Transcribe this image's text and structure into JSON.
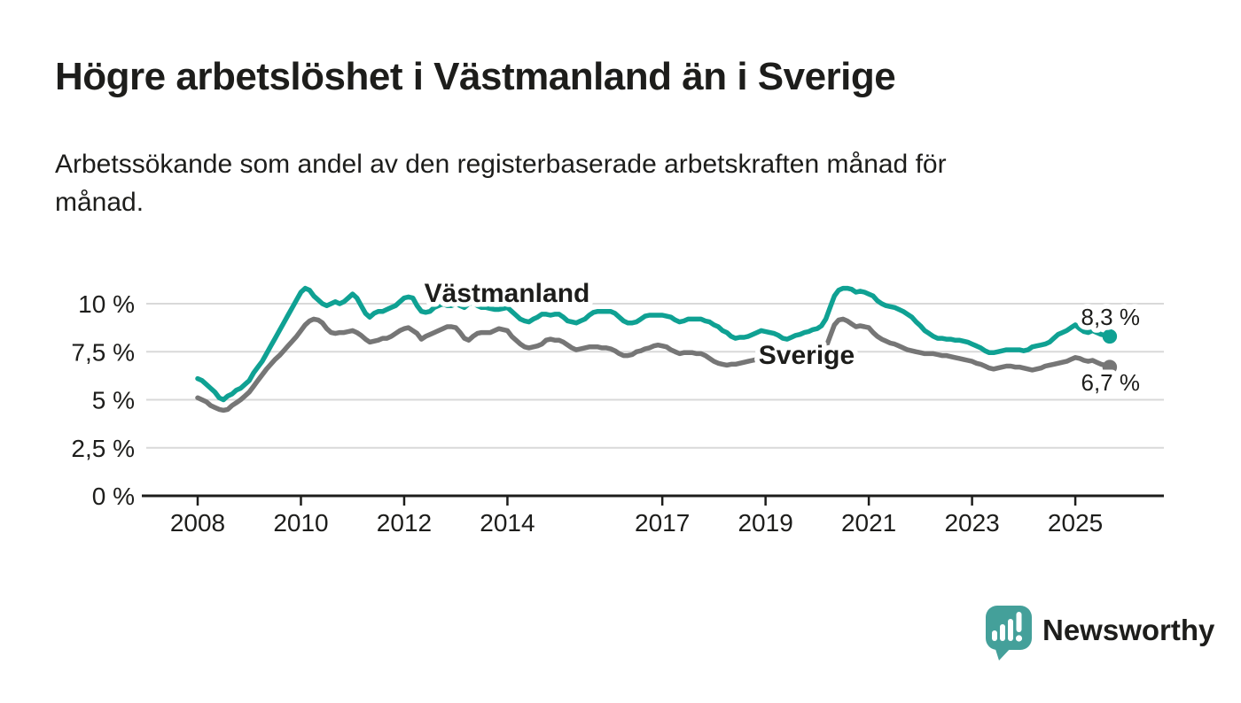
{
  "header": {
    "title": "Högre arbetslöshet i Västmanland än i Sverige",
    "subtitle": "Arbetssökande som andel av den registerbaserade arbetskraften månad för månad.",
    "subtitle_lines": [
      "Arbetssökande som andel av den registerbaserade arbetskraften månad för",
      "månad."
    ]
  },
  "chart_data": {
    "type": "line",
    "unit": "percent",
    "x_start": "2008-01",
    "x_end": "2025-09",
    "points_per_year": 12,
    "grid": true,
    "ylim": [
      0,
      11.3
    ],
    "y_axis": {
      "ticks": [
        {
          "value": 0,
          "label": "0 %"
        },
        {
          "value": 2.5,
          "label": "2,5 %"
        },
        {
          "value": 5,
          "label": "5 %"
        },
        {
          "value": 7.5,
          "label": "7,5 %"
        },
        {
          "value": 10,
          "label": "10 %"
        }
      ]
    },
    "x_axis": {
      "ticks": [
        {
          "year": 2008,
          "label": "2008"
        },
        {
          "year": 2010,
          "label": "2010"
        },
        {
          "year": 2012,
          "label": "2012"
        },
        {
          "year": 2014,
          "label": "2014"
        },
        {
          "year": 2017,
          "label": "2017"
        },
        {
          "year": 2019,
          "label": "2019"
        },
        {
          "year": 2021,
          "label": "2021"
        },
        {
          "year": 2023,
          "label": "2023"
        },
        {
          "year": 2025,
          "label": "2025"
        }
      ]
    },
    "series": [
      {
        "name": "Västmanland",
        "color": "#0fa193",
        "end_label": "8,3 %",
        "end_value": 8.3,
        "values": [
          6.1,
          6.0,
          5.8,
          5.6,
          5.4,
          5.1,
          5.0,
          5.2,
          5.3,
          5.5,
          5.6,
          5.8,
          6.0,
          6.4,
          6.7,
          7.0,
          7.4,
          7.8,
          8.2,
          8.6,
          9.0,
          9.4,
          9.8,
          10.2,
          10.6,
          10.8,
          10.7,
          10.4,
          10.2,
          10.0,
          9.9,
          10.0,
          10.1,
          10.0,
          10.1,
          10.3,
          10.5,
          10.3,
          9.9,
          9.5,
          9.3,
          9.5,
          9.6,
          9.6,
          9.7,
          9.8,
          9.9,
          10.1,
          10.3,
          10.35,
          10.3,
          9.9,
          9.6,
          9.55,
          9.6,
          9.8,
          9.9,
          10.0,
          9.9,
          9.9,
          10.0,
          9.9,
          9.8,
          10.0,
          10.05,
          9.9,
          9.8,
          9.8,
          9.75,
          9.7,
          9.7,
          9.75,
          9.8,
          9.6,
          9.4,
          9.2,
          9.1,
          9.05,
          9.2,
          9.3,
          9.45,
          9.45,
          9.4,
          9.45,
          9.45,
          9.3,
          9.1,
          9.05,
          9.0,
          9.1,
          9.2,
          9.4,
          9.55,
          9.6,
          9.6,
          9.6,
          9.6,
          9.5,
          9.3,
          9.1,
          9.0,
          9.0,
          9.05,
          9.2,
          9.35,
          9.4,
          9.4,
          9.4,
          9.4,
          9.35,
          9.3,
          9.15,
          9.05,
          9.1,
          9.2,
          9.2,
          9.2,
          9.2,
          9.1,
          9.05,
          8.9,
          8.8,
          8.6,
          8.5,
          8.3,
          8.2,
          8.25,
          8.25,
          8.3,
          8.4,
          8.5,
          8.6,
          8.55,
          8.5,
          8.45,
          8.35,
          8.2,
          8.15,
          8.25,
          8.35,
          8.4,
          8.5,
          8.55,
          8.65,
          8.7,
          8.85,
          9.2,
          9.8,
          10.4,
          10.7,
          10.8,
          10.8,
          10.75,
          10.6,
          10.65,
          10.6,
          10.5,
          10.4,
          10.15,
          10.0,
          9.9,
          9.85,
          9.8,
          9.7,
          9.6,
          9.45,
          9.3,
          9.05,
          8.85,
          8.6,
          8.45,
          8.3,
          8.2,
          8.2,
          8.15,
          8.15,
          8.1,
          8.1,
          8.05,
          8.0,
          7.9,
          7.8,
          7.7,
          7.55,
          7.45,
          7.45,
          7.5,
          7.55,
          7.6,
          7.6,
          7.6,
          7.6,
          7.55,
          7.6,
          7.75,
          7.8,
          7.85,
          7.9,
          8.0,
          8.2,
          8.4,
          8.5,
          8.6,
          8.75,
          8.9,
          8.7,
          8.55,
          8.5,
          8.6,
          8.5,
          8.4,
          8.35,
          8.3
        ]
      },
      {
        "name": "Sverige",
        "color": "#767676",
        "end_label": "6,7 %",
        "end_value": 6.7,
        "values": [
          5.1,
          5.0,
          4.9,
          4.7,
          4.6,
          4.5,
          4.45,
          4.5,
          4.7,
          4.85,
          5.0,
          5.2,
          5.4,
          5.7,
          6.0,
          6.3,
          6.6,
          6.85,
          7.1,
          7.3,
          7.55,
          7.8,
          8.05,
          8.3,
          8.6,
          8.9,
          9.1,
          9.2,
          9.15,
          9.0,
          8.7,
          8.5,
          8.45,
          8.5,
          8.5,
          8.55,
          8.6,
          8.5,
          8.35,
          8.15,
          8.0,
          8.05,
          8.1,
          8.2,
          8.2,
          8.3,
          8.45,
          8.6,
          8.7,
          8.75,
          8.6,
          8.45,
          8.15,
          8.3,
          8.4,
          8.5,
          8.6,
          8.7,
          8.8,
          8.8,
          8.75,
          8.5,
          8.2,
          8.1,
          8.3,
          8.45,
          8.5,
          8.5,
          8.5,
          8.6,
          8.7,
          8.65,
          8.6,
          8.3,
          8.1,
          7.9,
          7.75,
          7.7,
          7.75,
          7.8,
          7.9,
          8.1,
          8.15,
          8.1,
          8.1,
          8.0,
          7.85,
          7.7,
          7.6,
          7.65,
          7.7,
          7.75,
          7.75,
          7.75,
          7.7,
          7.7,
          7.65,
          7.55,
          7.4,
          7.3,
          7.3,
          7.35,
          7.5,
          7.55,
          7.65,
          7.7,
          7.8,
          7.85,
          7.8,
          7.75,
          7.6,
          7.5,
          7.4,
          7.45,
          7.45,
          7.45,
          7.4,
          7.4,
          7.3,
          7.15,
          7.0,
          6.9,
          6.85,
          6.8,
          6.85,
          6.85,
          6.9,
          6.95,
          7.0,
          7.05,
          7.1,
          7.1,
          7.1,
          7.05,
          7.0,
          6.95,
          6.9,
          6.9,
          6.95,
          7.0,
          7.1,
          7.15,
          7.2,
          7.25,
          7.3,
          7.4,
          7.7,
          8.3,
          8.9,
          9.15,
          9.2,
          9.1,
          8.95,
          8.8,
          8.85,
          8.8,
          8.75,
          8.5,
          8.3,
          8.15,
          8.05,
          7.95,
          7.9,
          7.8,
          7.7,
          7.6,
          7.55,
          7.5,
          7.45,
          7.4,
          7.4,
          7.4,
          7.35,
          7.3,
          7.3,
          7.25,
          7.2,
          7.15,
          7.1,
          7.05,
          7.0,
          6.9,
          6.85,
          6.75,
          6.65,
          6.6,
          6.65,
          6.7,
          6.75,
          6.75,
          6.7,
          6.7,
          6.65,
          6.6,
          6.55,
          6.6,
          6.65,
          6.75,
          6.8,
          6.85,
          6.9,
          6.95,
          7.0,
          7.1,
          7.2,
          7.15,
          7.05,
          7.0,
          7.05,
          6.95,
          6.85,
          6.8,
          6.7
        ]
      }
    ],
    "colors": {
      "grid": "#d9d9d9",
      "axis": "#1d1d1b",
      "text": "#1d1d1b"
    }
  },
  "footer": {
    "brand": "Newsworthy",
    "brand_color": "#3f9d94",
    "icon_color": "#44a09a",
    "icon": "speech-bubble-bar-chart"
  }
}
